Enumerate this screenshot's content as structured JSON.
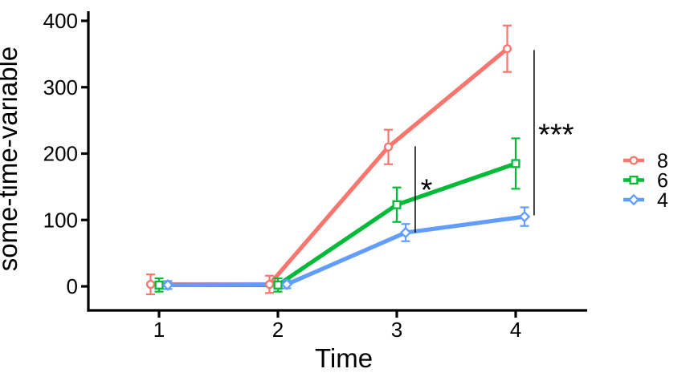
{
  "chart_data": {
    "type": "line",
    "title": "",
    "xlabel": "Time",
    "ylabel": "some-time-variable",
    "x": [
      1,
      2,
      3,
      4
    ],
    "xticks": [
      "1",
      "2",
      "3",
      "4"
    ],
    "yticks": [
      "0",
      "100",
      "200",
      "300",
      "400"
    ],
    "ytick_values": [
      0,
      100,
      200,
      300,
      400
    ],
    "xlim": [
      0.4,
      4.6
    ],
    "ylim": [
      0,
      400
    ],
    "grid": false,
    "legend_position": "right",
    "axis_color": "#000000",
    "text_color": "#000000",
    "series": [
      {
        "name": "8",
        "color": "#F8766D",
        "marker": "circle",
        "values": [
          3,
          3,
          210,
          358
        ],
        "errors": [
          15,
          13,
          26,
          35
        ]
      },
      {
        "name": "6",
        "color": "#00BA38",
        "marker": "square",
        "values": [
          2,
          2,
          123,
          185
        ],
        "errors": [
          10,
          10,
          26,
          38
        ]
      },
      {
        "name": "4",
        "color": "#619CFF",
        "marker": "diamond",
        "values": [
          2,
          3,
          81,
          105
        ],
        "errors": [
          6,
          6,
          13,
          14
        ]
      }
    ],
    "significance_brackets": [
      {
        "label": "*",
        "x": 3.155,
        "y_from": 81,
        "y_to": 211,
        "label_x": 3.25,
        "label_y": 130
      },
      {
        "label": "***",
        "x": 4.155,
        "y_from": 107,
        "y_to": 356,
        "label_x": 4.34,
        "label_y": 213
      }
    ]
  }
}
